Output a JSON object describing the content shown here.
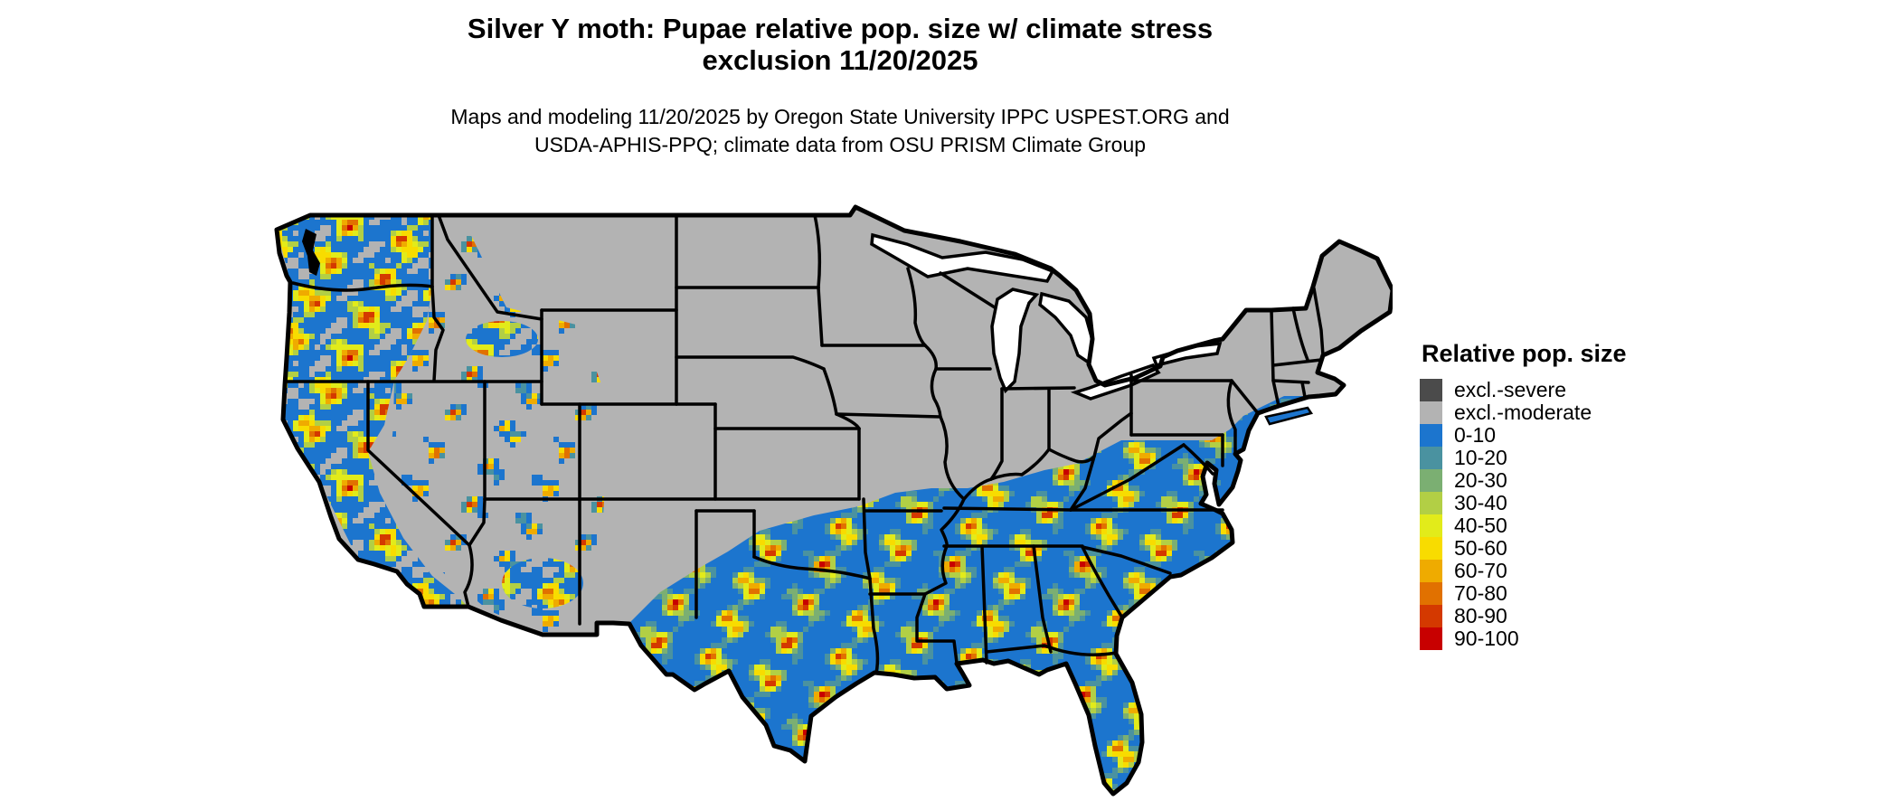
{
  "header": {
    "title_line1": "Silver Y moth: Pupae relative pop. size w/ climate stress",
    "title_line2": "exclusion 11/20/2025",
    "subtitle_line1": "Maps and modeling 11/20/2025 by Oregon State University IPPC USPEST.ORG and",
    "subtitle_line2": "USDA-APHIS-PPQ; climate data from OSU PRISM Climate Group"
  },
  "legend": {
    "title": "Relative pop. size",
    "items": [
      {
        "label": "excl.-severe",
        "key": "excl_severe"
      },
      {
        "label": "excl.-moderate",
        "key": "excl_moderate"
      },
      {
        "label": "0-10",
        "key": "c0_10"
      },
      {
        "label": "10-20",
        "key": "c10_20"
      },
      {
        "label": "20-30",
        "key": "c20_30"
      },
      {
        "label": "30-40",
        "key": "c30_40"
      },
      {
        "label": "40-50",
        "key": "c40_50"
      },
      {
        "label": "50-60",
        "key": "c50_60"
      },
      {
        "label": "60-70",
        "key": "c60_70"
      },
      {
        "label": "70-80",
        "key": "c70_80"
      },
      {
        "label": "80-90",
        "key": "c80_90"
      },
      {
        "label": "90-100",
        "key": "c90_100"
      }
    ]
  },
  "palette": {
    "excl_severe": "#4B4B4B",
    "excl_moderate": "#B3B3B3",
    "c0_10": "#1C75CE",
    "c10_20": "#4A92A0",
    "c20_30": "#7BAF72",
    "c30_40": "#B2CF45",
    "c40_50": "#E2EB1A",
    "c50_60": "#F8DC00",
    "c60_70": "#EFAB00",
    "c70_80": "#E17100",
    "c80_90": "#D43900",
    "c90_100": "#C80000",
    "border": "#000000",
    "water": "#FFFFFF"
  },
  "map": {
    "type": "choropleth-raster",
    "region": "contiguous United States with state boundaries",
    "reading": {
      "northern_and_midwestern_states": "excl.-moderate (solid light gray)",
      "southern_states_gulf_southeast_texas_florida": "relative pop. size mostly 0-10 (blue) with mottled ridges of 40-100 (yellow to red)",
      "pacific_coast_states": "mottled 0-10 through 90-100 over gray background",
      "interior_west": "mostly excl.-moderate with sparse blue/yellow/orange speckles",
      "atlantic_coast_up_to_long_island": "0-10 (blue) coastal band"
    }
  }
}
